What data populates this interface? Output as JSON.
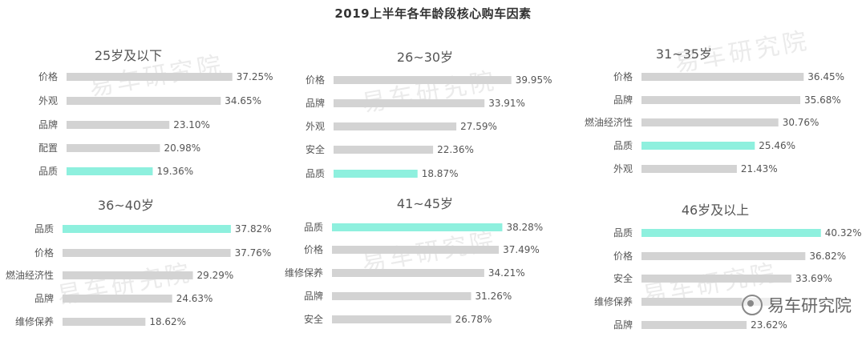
{
  "title": "2019上半年各年龄段核心购车因素",
  "brand": {
    "text": "易车研究院"
  },
  "watermark": "易车研究院",
  "colors": {
    "default": "#d3d3d3",
    "highlight": "#8ef0de",
    "label": "#555555",
    "value": "#555555"
  },
  "chart_data": [
    {
      "type": "bar",
      "orientation": "horizontal",
      "title": "25岁及以下",
      "categories": [
        "价格",
        "外观",
        "品牌",
        "配置",
        "品质"
      ],
      "values": [
        37.25,
        34.65,
        23.1,
        20.98,
        19.36
      ],
      "value_labels": [
        "37.25%",
        "34.65%",
        "23.10%",
        "20.98%",
        "19.36%"
      ],
      "highlight": [
        false,
        false,
        false,
        false,
        true
      ]
    },
    {
      "type": "bar",
      "orientation": "horizontal",
      "title": "26~30岁",
      "categories": [
        "价格",
        "品牌",
        "外观",
        "安全",
        "品质"
      ],
      "values": [
        39.95,
        33.91,
        27.59,
        22.36,
        18.87
      ],
      "value_labels": [
        "39.95%",
        "33.91%",
        "27.59%",
        "22.36%",
        "18.87%"
      ],
      "highlight": [
        false,
        false,
        false,
        false,
        true
      ]
    },
    {
      "type": "bar",
      "orientation": "horizontal",
      "title": "31~35岁",
      "categories": [
        "价格",
        "品牌",
        "燃油经济性",
        "品质",
        "外观"
      ],
      "values": [
        36.45,
        35.68,
        30.76,
        25.46,
        21.43
      ],
      "value_labels": [
        "36.45%",
        "35.68%",
        "30.76%",
        "25.46%",
        "21.43%"
      ],
      "highlight": [
        false,
        false,
        false,
        true,
        false
      ]
    },
    {
      "type": "bar",
      "orientation": "horizontal",
      "title": "36~40岁",
      "categories": [
        "品质",
        "价格",
        "燃油经济性",
        "品牌",
        "维修保养"
      ],
      "values": [
        37.82,
        37.76,
        29.29,
        24.63,
        18.62
      ],
      "value_labels": [
        "37.82%",
        "37.76%",
        "29.29%",
        "24.63%",
        "18.62%"
      ],
      "highlight": [
        true,
        false,
        false,
        false,
        false
      ]
    },
    {
      "type": "bar",
      "orientation": "horizontal",
      "title": "41~45岁",
      "categories": [
        "品质",
        "价格",
        "维修保养",
        "品牌",
        "安全"
      ],
      "values": [
        38.28,
        37.49,
        34.21,
        31.26,
        26.78
      ],
      "value_labels": [
        "38.28%",
        "37.49%",
        "34.21%",
        "31.26%",
        "26.78%"
      ],
      "highlight": [
        true,
        false,
        false,
        false,
        false
      ]
    },
    {
      "type": "bar",
      "orientation": "horizontal",
      "title": "46岁及以上",
      "categories": [
        "品质",
        "价格",
        "安全",
        "维修保养",
        "品牌"
      ],
      "values": [
        40.32,
        36.82,
        33.69,
        29.66,
        23.62
      ],
      "value_labels": [
        "40.32%",
        "36.82%",
        "33.69%",
        "",
        "23.62%"
      ],
      "highlight": [
        true,
        false,
        false,
        false,
        false
      ]
    }
  ]
}
